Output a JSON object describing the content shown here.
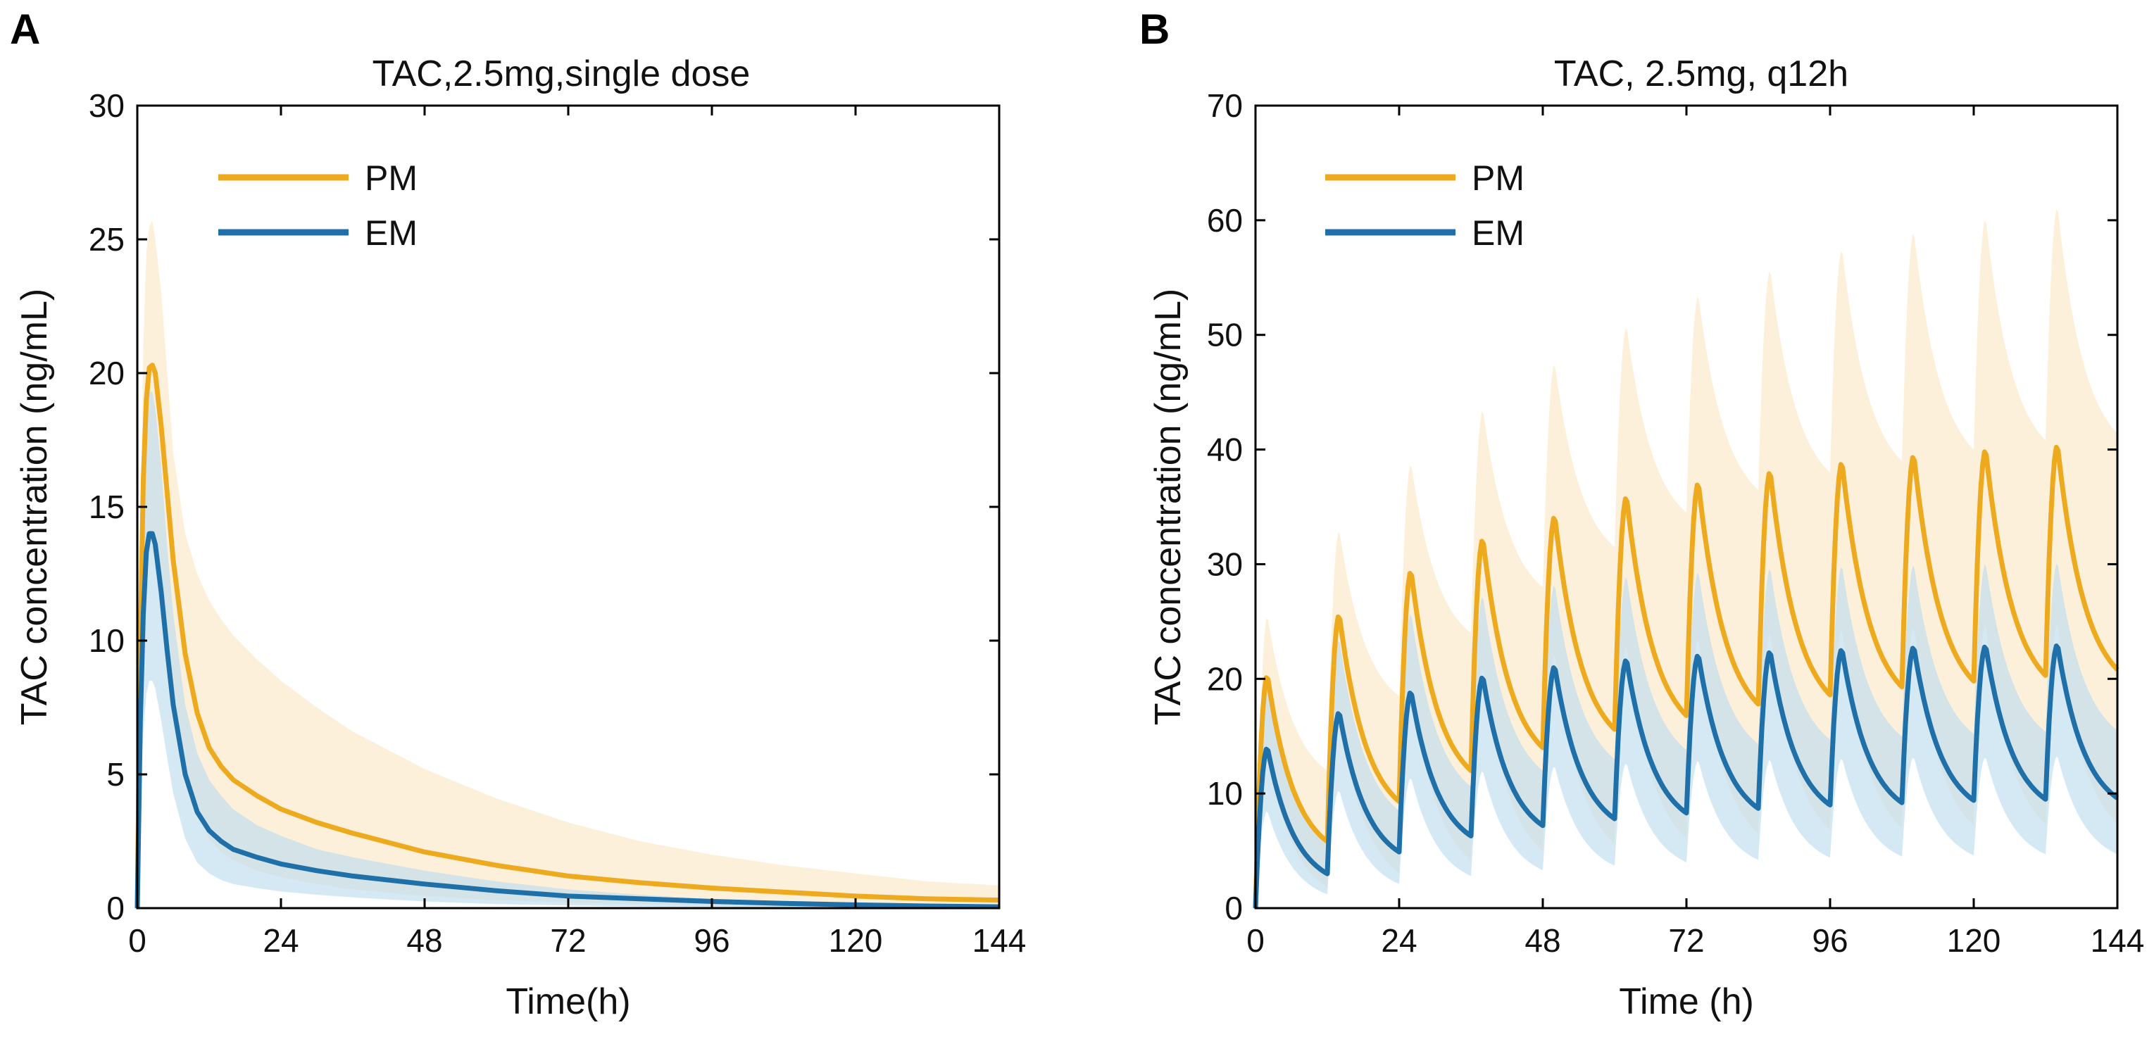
{
  "panels": [
    {
      "letter": "A"
    },
    {
      "letter": "B"
    }
  ],
  "colors": {
    "PM": "#EDAA1F",
    "EM": "#1F6FA8",
    "PM_band": "#FCEBCF",
    "EM_band": "#B9DAEE",
    "axis": "#000000"
  },
  "chart_data": [
    {
      "type": "line",
      "title": "TAC,2.5mg,single dose",
      "xlabel": "Time(h)",
      "ylabel": "TAC concentration (ng/mL)",
      "xlim": [
        0,
        144
      ],
      "ylim": [
        0,
        30
      ],
      "xticks": [
        0,
        24,
        48,
        72,
        96,
        120,
        144
      ],
      "yticks": [
        0,
        5,
        10,
        15,
        20,
        25,
        30
      ],
      "legend_position": "top-left",
      "series": [
        {
          "name": "PM",
          "x": [
            0,
            0.5,
            1,
            1.5,
            2,
            2.5,
            3,
            4,
            5,
            6,
            8,
            10,
            12,
            14,
            16,
            20,
            24,
            30,
            36,
            48,
            60,
            72,
            84,
            96,
            108,
            120,
            132,
            144
          ],
          "values": [
            0,
            10,
            16,
            19,
            20.2,
            20.3,
            20,
            18,
            15.5,
            13,
            9.5,
            7.3,
            6,
            5.3,
            4.8,
            4.2,
            3.7,
            3.2,
            2.8,
            2.1,
            1.6,
            1.2,
            0.95,
            0.75,
            0.6,
            0.45,
            0.35,
            0.3
          ],
          "band_upper": [
            0,
            14,
            21,
            24.5,
            25.5,
            25.7,
            25,
            23,
            20,
            17,
            14,
            12.5,
            11.5,
            10.8,
            10.2,
            9.3,
            8.5,
            7.5,
            6.6,
            5.2,
            4.1,
            3.2,
            2.5,
            2,
            1.6,
            1.3,
            1,
            0.85
          ],
          "band_lower": [
            0,
            6,
            10,
            12.5,
            13.3,
            13.4,
            13,
            11.5,
            9.5,
            7.5,
            5,
            3.5,
            2.6,
            2.1,
            1.8,
            1.4,
            1.15,
            0.9,
            0.7,
            0.45,
            0.3,
            0.2,
            0.15,
            0.1,
            0.08,
            0.06,
            0.05,
            0.04
          ]
        },
        {
          "name": "EM",
          "x": [
            0,
            0.5,
            1,
            1.5,
            2,
            2.5,
            3,
            4,
            5,
            6,
            8,
            10,
            12,
            14,
            16,
            20,
            24,
            30,
            36,
            48,
            60,
            72,
            84,
            96,
            108,
            120,
            132,
            144
          ],
          "values": [
            0,
            7,
            11,
            13.3,
            14,
            14,
            13.6,
            11.8,
            9.6,
            7.6,
            5,
            3.6,
            2.9,
            2.5,
            2.2,
            1.9,
            1.65,
            1.4,
            1.2,
            0.9,
            0.65,
            0.45,
            0.35,
            0.25,
            0.18,
            0.12,
            0.08,
            0.05
          ],
          "band_upper": [
            0,
            10,
            15.5,
            18.5,
            19.3,
            19.3,
            18.7,
            16.5,
            13.5,
            11,
            7.6,
            5.8,
            4.8,
            4.2,
            3.7,
            3.1,
            2.7,
            2.2,
            1.9,
            1.4,
            1,
            0.7,
            0.5,
            0.35,
            0.25,
            0.18,
            0.12,
            0.08
          ],
          "band_lower": [
            0,
            4,
            6.5,
            8,
            8.5,
            8.5,
            8.2,
            7,
            5.6,
            4.3,
            2.6,
            1.7,
            1.3,
            1.05,
            0.9,
            0.75,
            0.62,
            0.5,
            0.4,
            0.25,
            0.15,
            0.1,
            0.06,
            0.04,
            0.03,
            0.02,
            0.01,
            0.01
          ]
        }
      ]
    },
    {
      "type": "line",
      "title": "TAC, 2.5mg, q12h",
      "xlabel": "Time (h)",
      "ylabel": "TAC concentration (ng/mL)",
      "xlim": [
        0,
        144
      ],
      "ylim": [
        0,
        70
      ],
      "xticks": [
        0,
        24,
        48,
        72,
        96,
        120,
        144
      ],
      "yticks": [
        0,
        10,
        20,
        30,
        40,
        50,
        60,
        70
      ],
      "legend_position": "top-left",
      "dosing_interval_h": 12,
      "series": [
        {
          "name": "PM",
          "peaks": [
            20.3,
            25.6,
            29.4,
            32.2,
            34.2,
            35.9,
            37.1,
            38.1,
            38.9,
            39.5,
            40,
            40.4
          ],
          "troughs": [
            5.8,
            9.3,
            12,
            14,
            15.6,
            16.8,
            17.8,
            18.6,
            19.3,
            19.8,
            20.3,
            20.8
          ],
          "band_upper_peaks": [
            25.5,
            33,
            38.8,
            43.5,
            47.5,
            50.8,
            53.5,
            55.7,
            57.5,
            59,
            60.2,
            61.2
          ],
          "band_upper_troughs": [
            12,
            18.5,
            24,
            28,
            31.5,
            34.5,
            36.5,
            38,
            39,
            40,
            40.8,
            41.4
          ],
          "band_lower_peaks": [
            13.5,
            16.8,
            19.3,
            21,
            22.2,
            23,
            23.6,
            24.1,
            24.4,
            24.6,
            24.8,
            24.9
          ],
          "band_lower_troughs": [
            1.8,
            3.1,
            4.2,
            5,
            5.6,
            6.1,
            6.5,
            6.8,
            7,
            7.2,
            7.3,
            7.4
          ]
        },
        {
          "name": "EM",
          "peaks": [
            14,
            17.1,
            18.9,
            20.2,
            21.1,
            21.7,
            22.1,
            22.4,
            22.6,
            22.8,
            22.9,
            23
          ],
          "troughs": [
            3,
            4.9,
            6.3,
            7.2,
            7.8,
            8.3,
            8.7,
            9,
            9.2,
            9.4,
            9.5,
            9.6
          ],
          "band_upper_peaks": [
            19.3,
            23.5,
            25.8,
            27.3,
            28.3,
            29,
            29.4,
            29.7,
            29.9,
            30,
            30.1,
            30.2
          ],
          "band_upper_troughs": [
            5.5,
            8.5,
            10.6,
            12,
            13,
            13.8,
            14.3,
            14.7,
            15,
            15.2,
            15.4,
            15.5
          ],
          "band_lower_peaks": [
            8.5,
            10.3,
            11.4,
            12,
            12.4,
            12.7,
            12.9,
            13,
            13.1,
            13.2,
            13.2,
            13.3
          ],
          "band_lower_troughs": [
            1.2,
            2.1,
            2.8,
            3.3,
            3.7,
            4,
            4.2,
            4.4,
            4.5,
            4.6,
            4.7,
            4.7
          ]
        }
      ]
    }
  ]
}
